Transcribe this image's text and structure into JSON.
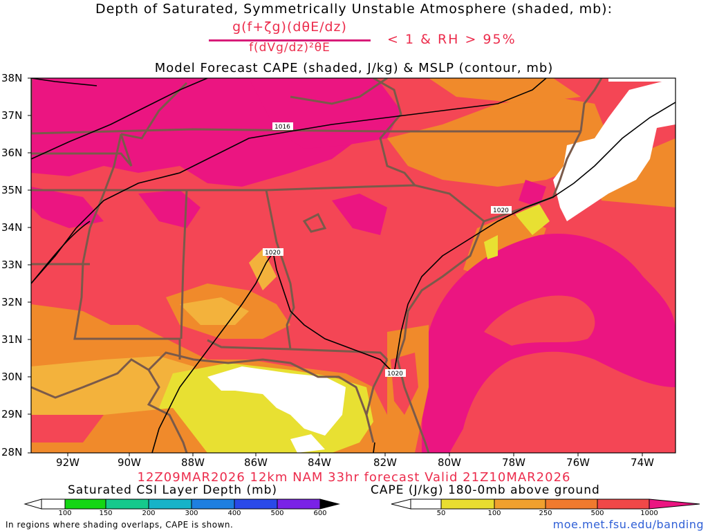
{
  "header": {
    "title_line1": "Depth of Saturated, Symmetrically Unstable Atmosphere (shaded, mb):",
    "fraction_numerator": "g(f+ζg)(dθE/dz)",
    "fraction_denominator": "f(dVg/dz)²θE",
    "condition": "< 1 & RH > 95%",
    "title_line3": "Model Forecast CAPE (shaded, J/kg) & MSLP (contour, mb)"
  },
  "map": {
    "lat_labels": [
      "38N",
      "37N",
      "36N",
      "35N",
      "34N",
      "33N",
      "32N",
      "31N",
      "30N",
      "29N",
      "28N"
    ],
    "lon_labels": [
      "92W",
      "90W",
      "88W",
      "86W",
      "84W",
      "82W",
      "80W",
      "78W",
      "76W",
      "74W"
    ],
    "contour_labels": [
      "1016",
      "1020",
      "1020",
      "1020"
    ],
    "colors": {
      "magenta": "#eb1581",
      "red": "#f44655",
      "orange": "#f08a2b",
      "lightorange": "#f3b23c",
      "yellow": "#e8e032",
      "outline": "#7a5a4a",
      "contour": "#000000"
    }
  },
  "footer": {
    "valid_line": "12Z09MAR2026 12km NAM 33hr forecast Valid 21Z10MAR2026",
    "csi_title": "Saturated CSI Layer Depth (mb)",
    "csi_ticks": [
      "100",
      "150",
      "200",
      "300",
      "400",
      "500",
      "600"
    ],
    "csi_colors": [
      "#ffffff",
      "#14d614",
      "#16c98c",
      "#17b3c8",
      "#2a49e8",
      "#7a22e6",
      "#000000"
    ],
    "cape_title": "CAPE (J/kg) 180-0mb above ground",
    "cape_ticks": [
      "50",
      "100",
      "250",
      "500",
      "1000"
    ],
    "cape_colors": [
      "#ffffff",
      "#e8dd30",
      "#f0a02e",
      "#f07a2e",
      "#f04848",
      "#eb1581"
    ],
    "note": "In regions where shading overlaps, CAPE is shown.",
    "url": "moe.met.fsu.edu/banding"
  }
}
